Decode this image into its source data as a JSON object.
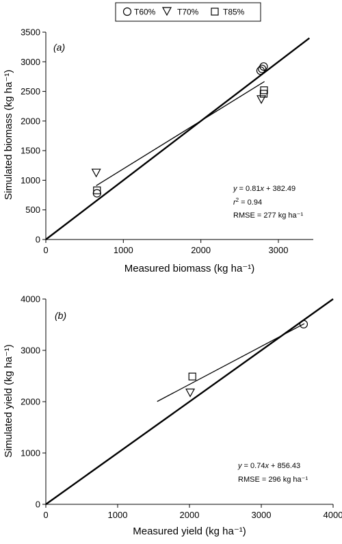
{
  "legend": {
    "entries": [
      {
        "label": "T60%",
        "marker": "circle"
      },
      {
        "label": "T70%",
        "marker": "triangle-down"
      },
      {
        "label": "T85%",
        "marker": "square"
      }
    ]
  },
  "chart_data": [
    {
      "type": "scatter",
      "panel_label": "(a)",
      "xlabel": "Measured biomass (kg ha⁻¹)",
      "ylabel": "Simulated biomass (kg ha⁻¹)",
      "xlim": [
        0,
        3450
      ],
      "ylim": [
        0,
        3500
      ],
      "xticks": [
        0,
        1000,
        2000,
        3000
      ],
      "yticks": [
        0,
        500,
        1000,
        1500,
        2000,
        2500,
        3000,
        3500
      ],
      "series": [
        {
          "name": "T60%",
          "marker": "circle",
          "points": [
            [
              660,
              780
            ],
            [
              2770,
              2850
            ],
            [
              2790,
              2880
            ],
            [
              2810,
              2920
            ]
          ]
        },
        {
          "name": "T70%",
          "marker": "triangle-down",
          "points": [
            [
              650,
              1130
            ],
            [
              2780,
              2370
            ]
          ]
        },
        {
          "name": "T85%",
          "marker": "square",
          "points": [
            [
              660,
              830
            ],
            [
              2810,
              2460
            ],
            [
              2815,
              2520
            ]
          ]
        }
      ],
      "reference_line": {
        "label": "1:1",
        "from": [
          0,
          0
        ],
        "to": [
          3400,
          3400
        ]
      },
      "regression_line": {
        "slope": 0.81,
        "intercept": 382.49,
        "x_range": [
          650,
          2820
        ]
      },
      "annotation": {
        "line1": " = 0.81",
        "line1b": " + 382.49",
        "r2": " = 0.94",
        "rmse": "RMSE = 277 kg ha⁻¹"
      },
      "grid": false
    },
    {
      "type": "scatter",
      "panel_label": "(b)",
      "xlabel": "Measured yield (kg ha⁻¹)",
      "ylabel": "Simulated yield (kg ha⁻¹)",
      "xlim": [
        0,
        4000
      ],
      "ylim": [
        0,
        4000
      ],
      "xticks": [
        0,
        1000,
        2000,
        3000,
        4000
      ],
      "yticks": [
        0,
        1000,
        2000,
        3000,
        4000
      ],
      "series": [
        {
          "name": "T60%",
          "marker": "circle",
          "points": [
            [
              3590,
              3510
            ]
          ]
        },
        {
          "name": "T70%",
          "marker": "triangle-down",
          "points": [
            [
              2010,
              2180
            ]
          ]
        },
        {
          "name": "T85%",
          "marker": "square",
          "points": [
            [
              2040,
              2490
            ]
          ]
        }
      ],
      "reference_line": {
        "label": "1:1",
        "from": [
          0,
          0
        ],
        "to": [
          4000,
          4000
        ]
      },
      "regression_line": {
        "slope": 0.74,
        "intercept": 856.43,
        "x_range": [
          1550,
          3600
        ]
      },
      "annotation": {
        "line1": " = 0.74",
        "line1b": " + 856.43",
        "rmse": "RMSE = 296 kg ha⁻¹"
      },
      "grid": false
    }
  ]
}
